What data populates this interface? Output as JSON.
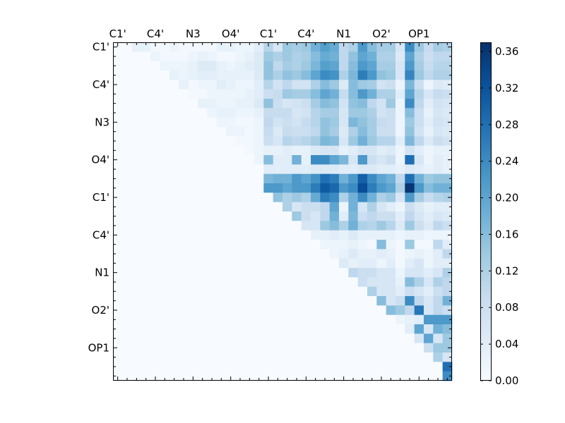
{
  "chart_data": {
    "type": "heatmap",
    "title": "",
    "xlabel": "",
    "ylabel": "",
    "grid_size": 36,
    "xtick_labels": [
      "C1'",
      "C4'",
      "N3",
      "O4'",
      "C1'",
      "C4'",
      "N1",
      "O2'",
      "OP1"
    ],
    "ytick_labels": [
      "C1'",
      "C4'",
      "N3",
      "O4'",
      "C1'",
      "C4'",
      "N1",
      "O2'",
      "OP1"
    ],
    "tick_step": 4,
    "colormap": "Blues",
    "color_low": "#f7fbff",
    "color_high": "#08306b",
    "colorbar": {
      "ticks": [
        0.0,
        0.04,
        0.08,
        0.12,
        0.16,
        0.2,
        0.24,
        0.28,
        0.32,
        0.36
      ],
      "tick_labels": [
        "0.00",
        "0.04",
        "0.08",
        "0.12",
        "0.16",
        "0.20",
        "0.24",
        "0.28",
        "0.32",
        "0.36"
      ],
      "range": [
        0.0,
        0.37
      ]
    },
    "rows": [
      [
        0,
        0,
        0.03,
        0.03,
        0.01,
        0.01,
        0.02,
        0.01,
        0.01,
        0.01,
        0.01,
        0.03,
        0.03,
        0.02,
        0.02,
        0.04,
        0.11,
        0.06,
        0.14,
        0.13,
        0.14,
        0.18,
        0.21,
        0.19,
        0.1,
        0.12,
        0.22,
        0.16,
        0.13,
        0.13,
        0.06,
        0.24,
        0.14,
        0.09,
        0.13,
        0.12
      ],
      [
        0,
        0,
        0,
        0,
        0.02,
        0.01,
        0.01,
        0.01,
        0.02,
        0.03,
        0.02,
        0.01,
        0.01,
        0.02,
        0.03,
        0.05,
        0.14,
        0.12,
        0.14,
        0.12,
        0.13,
        0.16,
        0.19,
        0.18,
        0.1,
        0.15,
        0.2,
        0.18,
        0.12,
        0.12,
        0.05,
        0.2,
        0.12,
        0.08,
        0.1,
        0.1
      ],
      [
        0,
        0,
        0,
        0,
        0,
        0.02,
        0.02,
        0.02,
        0.03,
        0.05,
        0.05,
        0.03,
        0.02,
        0.03,
        0.04,
        0.05,
        0.15,
        0.1,
        0.13,
        0.12,
        0.14,
        0.17,
        0.21,
        0.2,
        0.1,
        0.16,
        0.22,
        0.2,
        0.13,
        0.13,
        0.06,
        0.22,
        0.13,
        0.09,
        0.11,
        0.11
      ],
      [
        0,
        0,
        0,
        0,
        0,
        0,
        0.03,
        0.02,
        0.03,
        0.04,
        0.04,
        0.03,
        0.03,
        0.03,
        0.03,
        0.05,
        0.15,
        0.12,
        0.15,
        0.14,
        0.16,
        0.2,
        0.24,
        0.23,
        0.12,
        0.17,
        0.26,
        0.22,
        0.15,
        0.14,
        0.06,
        0.25,
        0.14,
        0.1,
        0.12,
        0.12
      ],
      [
        0,
        0,
        0,
        0,
        0,
        0,
        0,
        0.03,
        0.01,
        0.02,
        0.02,
        0.04,
        0.03,
        0.02,
        0.02,
        0.04,
        0.11,
        0.07,
        0.1,
        0.07,
        0.07,
        0.12,
        0.16,
        0.14,
        0.05,
        0.16,
        0.14,
        0.13,
        0.07,
        0.08,
        0.02,
        0.17,
        0.08,
        0.02,
        0.05,
        0.04
      ],
      [
        0,
        0,
        0,
        0,
        0,
        0,
        0,
        0,
        0.01,
        0.01,
        0.02,
        0.02,
        0.02,
        0.02,
        0.03,
        0.04,
        0.08,
        0.09,
        0.14,
        0.13,
        0.13,
        0.16,
        0.2,
        0.18,
        0.09,
        0.16,
        0.22,
        0.18,
        0.12,
        0.12,
        0.04,
        0.2,
        0.11,
        0.06,
        0.09,
        0.08
      ],
      [
        0,
        0,
        0,
        0,
        0,
        0,
        0,
        0,
        0,
        0.03,
        0.03,
        0.02,
        0.02,
        0.03,
        0.03,
        0.05,
        0.15,
        0.08,
        0.06,
        0.07,
        0.08,
        0.13,
        0.16,
        0.15,
        0.07,
        0.15,
        0.16,
        0.1,
        0.07,
        0.14,
        0.02,
        0.24,
        0.1,
        0.04,
        0.07,
        0.06
      ],
      [
        0,
        0,
        0,
        0,
        0,
        0,
        0,
        0,
        0,
        0,
        0.02,
        0.03,
        0.03,
        0.02,
        0.02,
        0.03,
        0.09,
        0.09,
        0.09,
        0.06,
        0.07,
        0.11,
        0.13,
        0.13,
        0.06,
        0.14,
        0.14,
        0.12,
        0.07,
        0.08,
        0.02,
        0.16,
        0.08,
        0.03,
        0.06,
        0.05
      ],
      [
        0,
        0,
        0,
        0,
        0,
        0,
        0,
        0,
        0,
        0,
        0,
        0.02,
        0.02,
        0.01,
        0.01,
        0.02,
        0.1,
        0.07,
        0.08,
        0.07,
        0.09,
        0.11,
        0.15,
        0.14,
        0.06,
        0.17,
        0.15,
        0.13,
        0.09,
        0.08,
        0.02,
        0.14,
        0.08,
        0.04,
        0.07,
        0.06
      ],
      [
        0,
        0,
        0,
        0,
        0,
        0,
        0,
        0,
        0,
        0,
        0,
        0,
        0.02,
        0.02,
        0.01,
        0.02,
        0.09,
        0.05,
        0.09,
        0.08,
        0.08,
        0.1,
        0.15,
        0.13,
        0.05,
        0.12,
        0.16,
        0.13,
        0.08,
        0.08,
        0.02,
        0.15,
        0.07,
        0.03,
        0.06,
        0.05
      ],
      [
        0,
        0,
        0,
        0,
        0,
        0,
        0,
        0,
        0,
        0,
        0,
        0,
        0,
        0.01,
        0.01,
        0.02,
        0.08,
        0.06,
        0.11,
        0.1,
        0.11,
        0.13,
        0.17,
        0.16,
        0.06,
        0.14,
        0.18,
        0.14,
        0.11,
        0.11,
        0.04,
        0.17,
        0.1,
        0.05,
        0.08,
        0.07
      ],
      [
        0,
        0,
        0,
        0,
        0,
        0,
        0,
        0,
        0,
        0,
        0,
        0,
        0,
        0,
        0.01,
        0.02,
        0.03,
        0.03,
        0.04,
        0.03,
        0.03,
        0.05,
        0.06,
        0.06,
        0.03,
        0.04,
        0.06,
        0.06,
        0.04,
        0.05,
        0.02,
        0.07,
        0.04,
        0.02,
        0.03,
        0.03
      ],
      [
        0,
        0,
        0,
        0,
        0,
        0,
        0,
        0,
        0,
        0,
        0,
        0,
        0,
        0,
        0,
        0.02,
        0.16,
        0.04,
        0.04,
        0.18,
        0.03,
        0.24,
        0.24,
        0.2,
        0.17,
        0.06,
        0.22,
        0.08,
        0.06,
        0.08,
        0.02,
        0.28,
        0.06,
        0.02,
        0.04,
        0.03
      ],
      [
        0,
        0,
        0,
        0,
        0,
        0,
        0,
        0,
        0,
        0,
        0,
        0,
        0,
        0,
        0,
        0,
        0.04,
        0.04,
        0.04,
        0.04,
        0.04,
        0.05,
        0.05,
        0.05,
        0.04,
        0.04,
        0.05,
        0.05,
        0.04,
        0.04,
        0.03,
        0.05,
        0.04,
        0.03,
        0.04,
        0.03
      ],
      [
        0,
        0,
        0,
        0,
        0,
        0,
        0,
        0,
        0,
        0,
        0,
        0,
        0,
        0,
        0,
        0,
        0.17,
        0.18,
        0.18,
        0.22,
        0.2,
        0.23,
        0.28,
        0.26,
        0.18,
        0.22,
        0.3,
        0.24,
        0.2,
        0.18,
        0.1,
        0.28,
        0.18,
        0.14,
        0.15,
        0.15
      ],
      [
        0,
        0,
        0,
        0,
        0,
        0,
        0,
        0,
        0,
        0,
        0,
        0,
        0,
        0,
        0,
        0,
        0.22,
        0.22,
        0.2,
        0.22,
        0.22,
        0.26,
        0.31,
        0.29,
        0.22,
        0.24,
        0.33,
        0.26,
        0.22,
        0.2,
        0.12,
        0.36,
        0.22,
        0.16,
        0.18,
        0.18
      ],
      [
        0,
        0,
        0,
        0,
        0,
        0,
        0,
        0,
        0,
        0,
        0,
        0,
        0,
        0,
        0,
        0,
        0,
        0.15,
        0.12,
        0.14,
        0.12,
        0.19,
        0.26,
        0.24,
        0.12,
        0.18,
        0.24,
        0.18,
        0.12,
        0.14,
        0.06,
        0.22,
        0.13,
        0.09,
        0.11,
        0.12
      ],
      [
        0,
        0,
        0,
        0,
        0,
        0,
        0,
        0,
        0,
        0,
        0,
        0,
        0,
        0,
        0,
        0,
        0,
        0,
        0.12,
        0.06,
        0.08,
        0.08,
        0.1,
        0.2,
        0.02,
        0.18,
        0.06,
        0.12,
        0.06,
        0.04,
        0.02,
        0.08,
        0.05,
        0.03,
        0.04,
        0.04
      ],
      [
        0,
        0,
        0,
        0,
        0,
        0,
        0,
        0,
        0,
        0,
        0,
        0,
        0,
        0,
        0,
        0,
        0,
        0,
        0,
        0.14,
        0.08,
        0.06,
        0.1,
        0.18,
        0.04,
        0.17,
        0.08,
        0.1,
        0.08,
        0.08,
        0.04,
        0.1,
        0.06,
        0.04,
        0.06,
        0.05
      ],
      [
        0,
        0,
        0,
        0,
        0,
        0,
        0,
        0,
        0,
        0,
        0,
        0,
        0,
        0,
        0,
        0,
        0,
        0,
        0,
        0,
        0.06,
        0.06,
        0.14,
        0.16,
        0.12,
        0.18,
        0.12,
        0.11,
        0.14,
        0.11,
        0.05,
        0.14,
        0.08,
        0.05,
        0.1,
        0.08
      ],
      [
        0,
        0,
        0,
        0,
        0,
        0,
        0,
        0,
        0,
        0,
        0,
        0,
        0,
        0,
        0,
        0,
        0,
        0,
        0,
        0,
        0,
        0.03,
        0.03,
        0.04,
        0.03,
        0.05,
        0.03,
        0.03,
        0.03,
        0.03,
        0.02,
        0.03,
        0.03,
        0.02,
        0.02,
        0.02
      ],
      [
        0,
        0,
        0,
        0,
        0,
        0,
        0,
        0,
        0,
        0,
        0,
        0,
        0,
        0,
        0,
        0,
        0,
        0,
        0,
        0,
        0,
        0,
        0.02,
        0.02,
        0.02,
        0.03,
        0.02,
        0.01,
        0.16,
        0.02,
        0.01,
        0.14,
        0.01,
        0.01,
        0.1,
        0.04
      ],
      [
        0,
        0,
        0,
        0,
        0,
        0,
        0,
        0,
        0,
        0,
        0,
        0,
        0,
        0,
        0,
        0,
        0,
        0,
        0,
        0,
        0,
        0,
        0,
        0.02,
        0.03,
        0.05,
        0.03,
        0.03,
        0.04,
        0.03,
        0.01,
        0.02,
        0.03,
        0.02,
        0.04,
        0.1
      ],
      [
        0,
        0,
        0,
        0,
        0,
        0,
        0,
        0,
        0,
        0,
        0,
        0,
        0,
        0,
        0,
        0,
        0,
        0,
        0,
        0,
        0,
        0,
        0,
        0,
        0.05,
        0.03,
        0.04,
        0.04,
        0.02,
        0.04,
        0.01,
        0.04,
        0.06,
        0.02,
        0.04,
        0.04
      ],
      [
        0,
        0,
        0,
        0,
        0,
        0,
        0,
        0,
        0,
        0,
        0,
        0,
        0,
        0,
        0,
        0,
        0,
        0,
        0,
        0,
        0,
        0,
        0,
        0,
        0,
        0.1,
        0.08,
        0.08,
        0.06,
        0.06,
        0.02,
        0.06,
        0.06,
        0.04,
        0.06,
        0.12
      ],
      [
        0,
        0,
        0,
        0,
        0,
        0,
        0,
        0,
        0,
        0,
        0,
        0,
        0,
        0,
        0,
        0,
        0,
        0,
        0,
        0,
        0,
        0,
        0,
        0,
        0,
        0,
        0.08,
        0.06,
        0.06,
        0.06,
        0.03,
        0.16,
        0.12,
        0.06,
        0.12,
        0.1
      ],
      [
        0,
        0,
        0,
        0,
        0,
        0,
        0,
        0,
        0,
        0,
        0,
        0,
        0,
        0,
        0,
        0,
        0,
        0,
        0,
        0,
        0,
        0,
        0,
        0,
        0,
        0,
        0,
        0.12,
        0.06,
        0.06,
        0.04,
        0.08,
        0.06,
        0.04,
        0.08,
        0.1
      ],
      [
        0,
        0,
        0,
        0,
        0,
        0,
        0,
        0,
        0,
        0,
        0,
        0,
        0,
        0,
        0,
        0,
        0,
        0,
        0,
        0,
        0,
        0,
        0,
        0,
        0,
        0,
        0,
        0,
        0.16,
        0.06,
        0.08,
        0.24,
        0.1,
        0.06,
        0.1,
        0.18
      ],
      [
        0,
        0,
        0,
        0,
        0,
        0,
        0,
        0,
        0,
        0,
        0,
        0,
        0,
        0,
        0,
        0,
        0,
        0,
        0,
        0,
        0,
        0,
        0,
        0,
        0,
        0,
        0,
        0,
        0,
        0.16,
        0.14,
        0.1,
        0.27,
        0.06,
        0.1,
        0.08
      ],
      [
        0,
        0,
        0,
        0,
        0,
        0,
        0,
        0,
        0,
        0,
        0,
        0,
        0,
        0,
        0,
        0,
        0,
        0,
        0,
        0,
        0,
        0,
        0,
        0,
        0,
        0,
        0,
        0,
        0,
        0,
        0.02,
        0.03,
        0.04,
        0.22,
        0.22,
        0.22
      ],
      [
        0,
        0,
        0,
        0,
        0,
        0,
        0,
        0,
        0,
        0,
        0,
        0,
        0,
        0,
        0,
        0,
        0,
        0,
        0,
        0,
        0,
        0,
        0,
        0,
        0,
        0,
        0,
        0,
        0,
        0,
        0,
        0.04,
        0.2,
        0.06,
        0.18,
        0.16
      ],
      [
        0,
        0,
        0,
        0,
        0,
        0,
        0,
        0,
        0,
        0,
        0,
        0,
        0,
        0,
        0,
        0,
        0,
        0,
        0,
        0,
        0,
        0,
        0,
        0,
        0,
        0,
        0,
        0,
        0,
        0,
        0,
        0,
        0.06,
        0.2,
        0.06,
        0.14
      ],
      [
        0,
        0,
        0,
        0,
        0,
        0,
        0,
        0,
        0,
        0,
        0,
        0,
        0,
        0,
        0,
        0,
        0,
        0,
        0,
        0,
        0,
        0,
        0,
        0,
        0,
        0,
        0,
        0,
        0,
        0,
        0,
        0,
        0,
        0.08,
        0.14,
        0.14
      ],
      [
        0,
        0,
        0,
        0,
        0,
        0,
        0,
        0,
        0,
        0,
        0,
        0,
        0,
        0,
        0,
        0,
        0,
        0,
        0,
        0,
        0,
        0,
        0,
        0,
        0,
        0,
        0,
        0,
        0,
        0,
        0,
        0,
        0,
        0,
        0.12,
        0.06
      ],
      [
        0,
        0,
        0,
        0,
        0,
        0,
        0,
        0,
        0,
        0,
        0,
        0,
        0,
        0,
        0,
        0,
        0,
        0,
        0,
        0,
        0,
        0,
        0,
        0,
        0,
        0,
        0,
        0,
        0,
        0,
        0,
        0,
        0,
        0,
        0,
        0.28
      ],
      [
        0,
        0,
        0,
        0,
        0,
        0,
        0,
        0,
        0,
        0,
        0,
        0,
        0,
        0,
        0,
        0,
        0,
        0,
        0,
        0,
        0,
        0,
        0,
        0,
        0,
        0,
        0,
        0,
        0,
        0,
        0,
        0,
        0,
        0,
        0,
        0.24
      ]
    ]
  }
}
